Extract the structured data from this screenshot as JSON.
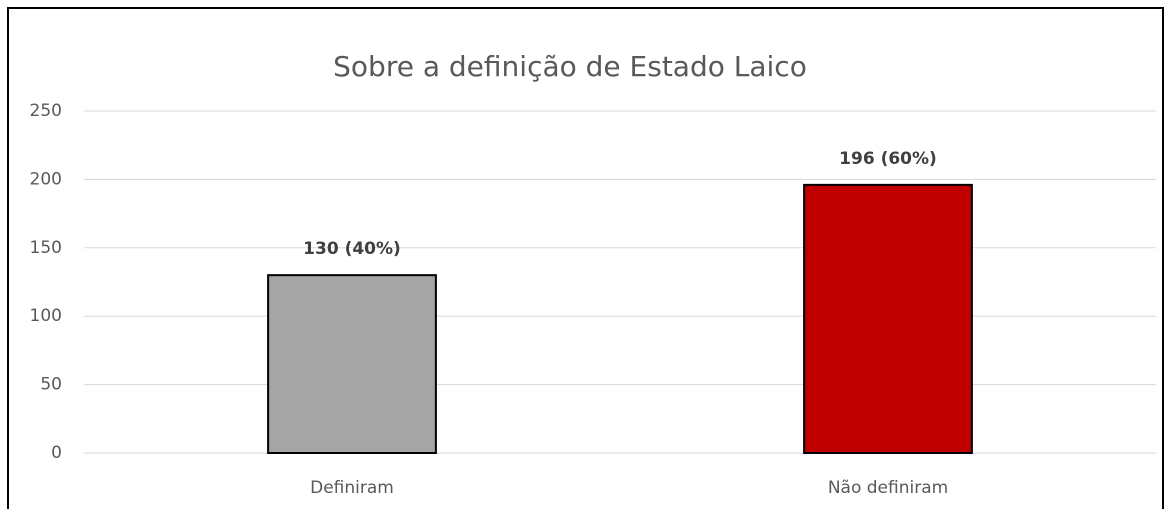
{
  "chart_data": {
    "type": "bar",
    "title": "Sobre a definição de Estado Laico",
    "categories": [
      "Definiram",
      "Não definiram"
    ],
    "values": [
      130,
      196
    ],
    "value_labels": [
      "130 (40%)",
      "196 (60%)"
    ],
    "colors": [
      "#a5a5a5",
      "#c00000"
    ],
    "ylim": [
      0,
      250
    ],
    "yticks": [
      0,
      50,
      100,
      150,
      200,
      250
    ],
    "grid": true
  }
}
